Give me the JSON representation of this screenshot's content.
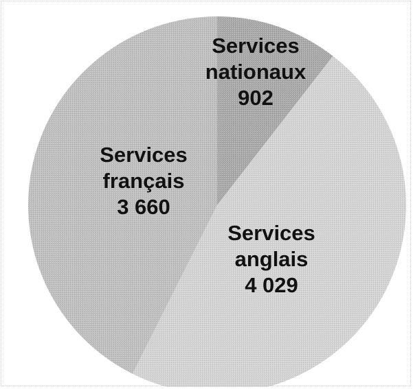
{
  "chart_data": {
    "type": "pie",
    "start_angle_deg": 0,
    "direction": "clockwise",
    "slices": [
      {
        "label_lines": [
          "Services",
          "nationaux",
          "902"
        ],
        "category": "Services nationaux",
        "value": 902,
        "color": "#a6a6a6"
      },
      {
        "label_lines": [
          "Services",
          "anglais",
          "4 029"
        ],
        "category": "Services anglais",
        "value": 4029,
        "color": "#d2d2d2"
      },
      {
        "label_lines": [
          "Services",
          "français",
          "3 660"
        ],
        "category": "Services français",
        "value": 3660,
        "color": "#bdbdbd"
      }
    ]
  }
}
